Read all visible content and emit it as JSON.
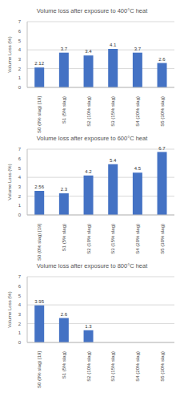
{
  "chart_data": [
    {
      "type": "bar",
      "title": "Volume loss after exposure to 400°C heat",
      "y_label": "Volume Loss (%)",
      "categories": [
        "S0 (0% slag) [19]",
        "S1 (5% slag)",
        "S2 (10% slag)",
        "S3 (15% slag)",
        "S4 (20% slag)",
        "S5 (30% slag)"
      ],
      "values": [
        2.12,
        3.7,
        3.4,
        4.1,
        3.7,
        2.6
      ],
      "color": "#4472c4",
      "ylim": [
        0,
        7
      ],
      "yticks": [
        0,
        1,
        2,
        3,
        4,
        5,
        6,
        7
      ],
      "grid": true,
      "data_labels": true
    },
    {
      "type": "bar",
      "title": "Volume loss after exposure to 600°C heat",
      "y_label": "Volume Loss (%)",
      "categories": [
        "S0 (0% slag) [19]",
        "S1 (5% slag)",
        "S2 (10% slag)",
        "S3 (15% slag)",
        "S4 (20% slag)",
        "S5 (30% slag)"
      ],
      "values": [
        2.56,
        2.3,
        4.2,
        5.4,
        4.5,
        6.7
      ],
      "color": "#4472c4",
      "ylim": [
        0,
        7
      ],
      "yticks": [
        0,
        1,
        2,
        3,
        4,
        5,
        6,
        7
      ],
      "grid": true,
      "data_labels": true
    },
    {
      "type": "bar",
      "title": "Volume loss after exposure to 800°C heat",
      "y_label": "Volume Loss (%)",
      "categories": [
        "S0 (0% slag) [19]",
        "S1 (5% slag)",
        "S2 (10% slag)",
        "S3 (15% slag)",
        "S4 (20% slag)",
        "S5 (30% slag)"
      ],
      "values": [
        3.95,
        2.6,
        1.3,
        null,
        null,
        null
      ],
      "color": "#4472c4",
      "ylim": [
        0,
        7
      ],
      "yticks": [
        0,
        1,
        2,
        3,
        4,
        5,
        6,
        7
      ],
      "grid": true,
      "data_labels": true
    }
  ]
}
